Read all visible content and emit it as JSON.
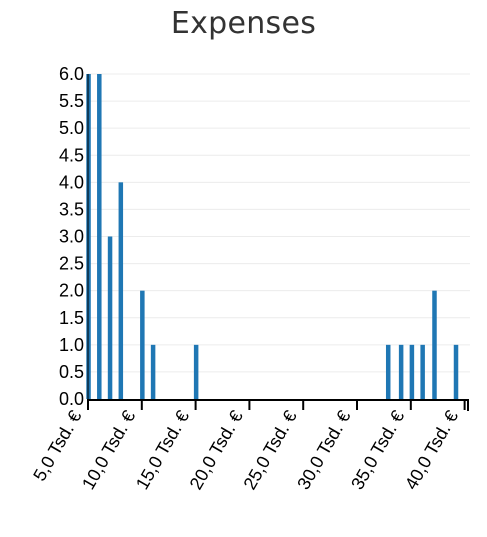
{
  "chart_data": {
    "type": "bar",
    "title": "Expenses",
    "xlabel": "",
    "ylabel": "",
    "xlim": [
      5000,
      40500
    ],
    "ylim": [
      0,
      6
    ],
    "yticks": [
      "0.0",
      "0.5",
      "1.0",
      "1.5",
      "2.0",
      "2.5",
      "3.0",
      "3.5",
      "4.0",
      "4.5",
      "5.0",
      "5.5",
      "6.0"
    ],
    "xticks": [
      {
        "value": 5000,
        "label": "5,0 Tsd. €"
      },
      {
        "value": 10000,
        "label": "10,0 Tsd. €"
      },
      {
        "value": 15000,
        "label": "15,0 Tsd. €"
      },
      {
        "value": 20000,
        "label": "20,0 Tsd. €"
      },
      {
        "value": 25000,
        "label": "25,0 Tsd. €"
      },
      {
        "value": 30000,
        "label": "30,0 Tsd. €"
      },
      {
        "value": 35000,
        "label": "35,0 Tsd. €"
      },
      {
        "value": 40000,
        "label": "40,0 Tsd. €"
      }
    ],
    "grid": true,
    "color": "#1f77b4",
    "bars": [
      {
        "x": 5050,
        "value": 6
      },
      {
        "x": 6050,
        "value": 6
      },
      {
        "x": 7050,
        "value": 3
      },
      {
        "x": 8050,
        "value": 4
      },
      {
        "x": 10050,
        "value": 2
      },
      {
        "x": 11050,
        "value": 1
      },
      {
        "x": 15050,
        "value": 1
      },
      {
        "x": 32900,
        "value": 1
      },
      {
        "x": 34100,
        "value": 1
      },
      {
        "x": 35100,
        "value": 1
      },
      {
        "x": 36100,
        "value": 1
      },
      {
        "x": 37200,
        "value": 2
      },
      {
        "x": 39200,
        "value": 1
      }
    ]
  }
}
